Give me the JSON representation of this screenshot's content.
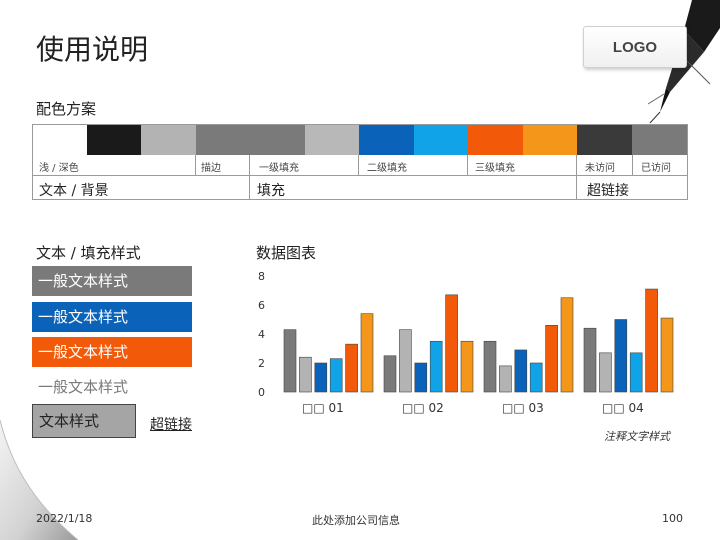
{
  "slide": {
    "title": "使用说明",
    "logo": "LOGO",
    "color_scheme_title": "配色方案",
    "text_fill_title": "文本 / 填充样式",
    "chart_title": "数据图表"
  },
  "palette": {
    "swatches": [
      {
        "name": "white",
        "color": "#ffffff"
      },
      {
        "name": "black",
        "color": "#1a1a1a"
      },
      {
        "name": "light-gray",
        "color": "#b3b3b3"
      },
      {
        "name": "gray-1",
        "color": "#7a7a7a"
      },
      {
        "name": "gray-2",
        "color": "#7a7a7a"
      },
      {
        "name": "silver",
        "color": "#b8b8b8"
      },
      {
        "name": "blue",
        "color": "#0a63b8"
      },
      {
        "name": "sky-blue",
        "color": "#10a3e8"
      },
      {
        "name": "orange-red",
        "color": "#f25a0a"
      },
      {
        "name": "orange",
        "color": "#f4961a"
      },
      {
        "name": "dark-gray",
        "color": "#3a3a3a"
      },
      {
        "name": "mid-gray",
        "color": "#7a7a7a"
      }
    ],
    "labels": [
      "浅 / 深色",
      "描边",
      "一级填充",
      "二级填充",
      "三级填充",
      "未访问",
      "已访问"
    ],
    "groups": [
      "文本 / 背景",
      "填充",
      "超链接"
    ]
  },
  "styles": {
    "boxes": [
      {
        "label": "一般文本样式",
        "color": "#7a7a7a"
      },
      {
        "label": "一般文本样式",
        "color": "#0a63b8"
      },
      {
        "label": "一般文本样式",
        "color": "#f25a0a"
      },
      {
        "label": "一般文本样式",
        "color": "#ffffff"
      }
    ],
    "text_style": "文本样式",
    "hyperlink": "超链接"
  },
  "chart_data": {
    "type": "bar",
    "categories": [
      "□□ 01",
      "□□ 02",
      "□□ 03",
      "□□ 04"
    ],
    "ylim": [
      0,
      8
    ],
    "yticks": [
      "0",
      "2",
      "4",
      "6",
      "8"
    ],
    "colors": [
      "#7a7a7a",
      "#b3b3b3",
      "#0a63b8",
      "#10a3e8",
      "#f25a0a",
      "#f4961a"
    ],
    "series": [
      {
        "values": [
          4.3,
          2.5,
          3.5,
          4.4
        ]
      },
      {
        "values": [
          2.4,
          4.3,
          1.8,
          2.7
        ]
      },
      {
        "values": [
          2.0,
          2.0,
          2.9,
          5.0
        ]
      },
      {
        "values": [
          2.3,
          3.5,
          2.0,
          2.7
        ]
      },
      {
        "values": [
          3.3,
          6.7,
          4.6,
          7.1
        ]
      },
      {
        "values": [
          5.4,
          3.5,
          6.5,
          5.1
        ]
      }
    ]
  },
  "note": "注释文字样式",
  "footer": {
    "date": "2022/1/18",
    "company": "此处添加公司信息",
    "page": "100"
  }
}
